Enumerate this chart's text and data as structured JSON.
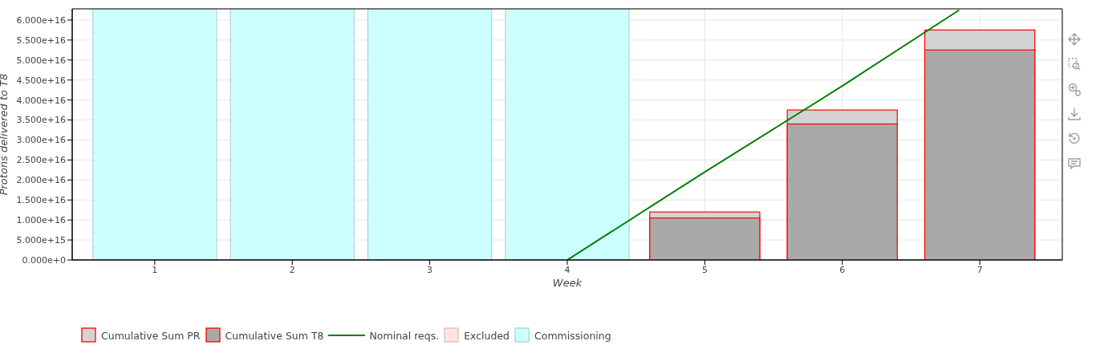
{
  "chart_data": {
    "type": "bar",
    "xlabel": "Week",
    "ylabel": "Protons delivered to T8",
    "x": [
      1,
      2,
      3,
      4,
      5,
      6,
      7
    ],
    "series": [
      {
        "name": "Cumulative Sum PR",
        "color": "#d3d3d3",
        "values": [
          0,
          0,
          0,
          0,
          1.2e+16,
          3.75e+16,
          5.75e+16
        ]
      },
      {
        "name": "Cumulative Sum T8",
        "color": "#a9a9a9",
        "values": [
          0,
          0,
          0,
          0,
          1.05e+16,
          3.4e+16,
          5.25e+16
        ]
      },
      {
        "name": "Nominal reqs.",
        "type": "line",
        "color": "#008000",
        "x": [
          4,
          5,
          6,
          6.85
        ],
        "values": [
          0,
          2.2e+16,
          4.35e+16,
          6.25e+16
        ]
      },
      {
        "name": "Excluded",
        "color": "#ffe4e1",
        "values": [
          null,
          null,
          null,
          null,
          null,
          null,
          null
        ]
      }
    ],
    "bands": [
      {
        "axis": "x",
        "from": 0.55,
        "to": 1.45,
        "label": "Commissioning",
        "color": "#ccffff"
      },
      {
        "axis": "x",
        "from": 1.55,
        "to": 2.45,
        "color": "#ccffff"
      },
      {
        "axis": "x",
        "from": 2.55,
        "to": 3.45,
        "color": "#ccffff"
      },
      {
        "axis": "x",
        "from": 3.55,
        "to": 4.45,
        "color": "#ccffff"
      }
    ],
    "xlim": [
      0.4,
      7.6
    ],
    "xticks": [
      1,
      2,
      3,
      4,
      5,
      6,
      7
    ],
    "ylim": [
      0,
      6.28e+16
    ],
    "yticks": [
      {
        "value": 0,
        "label": "0.000e+0"
      },
      {
        "value": 5000000000000000.0,
        "label": "5.000e+15"
      },
      {
        "value": 1e+16,
        "label": "1.000e+16"
      },
      {
        "value": 1.5e+16,
        "label": "1.500e+16"
      },
      {
        "value": 2e+16,
        "label": "2.000e+16"
      },
      {
        "value": 2.5e+16,
        "label": "2.500e+16"
      },
      {
        "value": 3e+16,
        "label": "3.000e+16"
      },
      {
        "value": 3.5e+16,
        "label": "3.500e+16"
      },
      {
        "value": 4e+16,
        "label": "4.000e+16"
      },
      {
        "value": 4.5e+16,
        "label": "4.500e+16"
      },
      {
        "value": 5e+16,
        "label": "5.000e+16"
      },
      {
        "value": 5.5e+16,
        "label": "5.500e+16"
      },
      {
        "value": 6e+16,
        "label": "6.000e+16"
      }
    ],
    "grid": true,
    "legend": "bottom left"
  }
}
